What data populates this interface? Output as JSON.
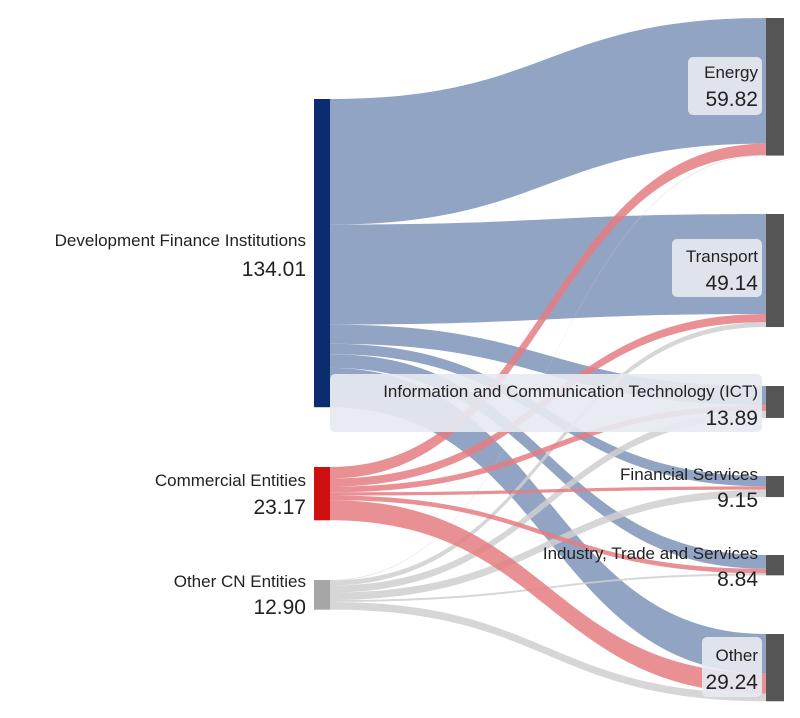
{
  "chart_data": {
    "type": "sankey",
    "colors": {
      "Development Finance Institutions": "#0b2d6f",
      "Commercial Entities": "#d01010",
      "Other CN Entities": "#a6a6a6",
      "target": "#555555",
      "link_dfi": "#8c9fc0",
      "link_commercial": "#e57c82",
      "link_other": "#cfcfcf"
    },
    "sources": [
      {
        "name": "Development Finance Institutions",
        "value": 134.01,
        "value_label": "134.01"
      },
      {
        "name": "Commercial Entities",
        "value": 23.17,
        "value_label": "23.17"
      },
      {
        "name": "Other CN Entities",
        "value": 12.9,
        "value_label": "12.90"
      }
    ],
    "targets": [
      {
        "name": "Energy",
        "value": 59.82,
        "value_label": "59.82"
      },
      {
        "name": "Transport",
        "value": 49.14,
        "value_label": "49.14"
      },
      {
        "name": "Information and Communication Technology (ICT)",
        "value": 13.89,
        "value_label": "13.89"
      },
      {
        "name": "Financial Services",
        "value": 9.15,
        "value_label": "9.15"
      },
      {
        "name": "Industry, Trade and Services",
        "value": 8.84,
        "value_label": "8.84"
      },
      {
        "name": "Other",
        "value": 29.24,
        "value_label": "29.24"
      }
    ],
    "links": [
      {
        "source": "Development Finance Institutions",
        "target": "Energy",
        "value": 54.6
      },
      {
        "source": "Development Finance Institutions",
        "target": "Transport",
        "value": 43.5
      },
      {
        "source": "Development Finance Institutions",
        "target": "Information and Communication Technology (ICT)",
        "value": 8.3
      },
      {
        "source": "Development Finance Institutions",
        "target": "Financial Services",
        "value": 4.5
      },
      {
        "source": "Development Finance Institutions",
        "target": "Industry, Trade and Services",
        "value": 6.0
      },
      {
        "source": "Development Finance Institutions",
        "target": "Other",
        "value": 17.11
      },
      {
        "source": "Commercial Entities",
        "target": "Energy",
        "value": 5.0
      },
      {
        "source": "Commercial Entities",
        "target": "Transport",
        "value": 3.5
      },
      {
        "source": "Commercial Entities",
        "target": "Information and Communication Technology (ICT)",
        "value": 2.5
      },
      {
        "source": "Commercial Entities",
        "target": "Financial Services",
        "value": 1.4
      },
      {
        "source": "Commercial Entities",
        "target": "Industry, Trade and Services",
        "value": 2.0
      },
      {
        "source": "Commercial Entities",
        "target": "Other",
        "value": 8.77
      },
      {
        "source": "Other CN Entities",
        "target": "Energy",
        "value": 0.22
      },
      {
        "source": "Other CN Entities",
        "target": "Transport",
        "value": 2.14
      },
      {
        "source": "Other CN Entities",
        "target": "Information and Communication Technology (ICT)",
        "value": 3.09
      },
      {
        "source": "Other CN Entities",
        "target": "Financial Services",
        "value": 3.25
      },
      {
        "source": "Other CN Entities",
        "target": "Industry, Trade and Services",
        "value": 0.84
      },
      {
        "source": "Other CN Entities",
        "target": "Other",
        "value": 3.36
      }
    ]
  }
}
